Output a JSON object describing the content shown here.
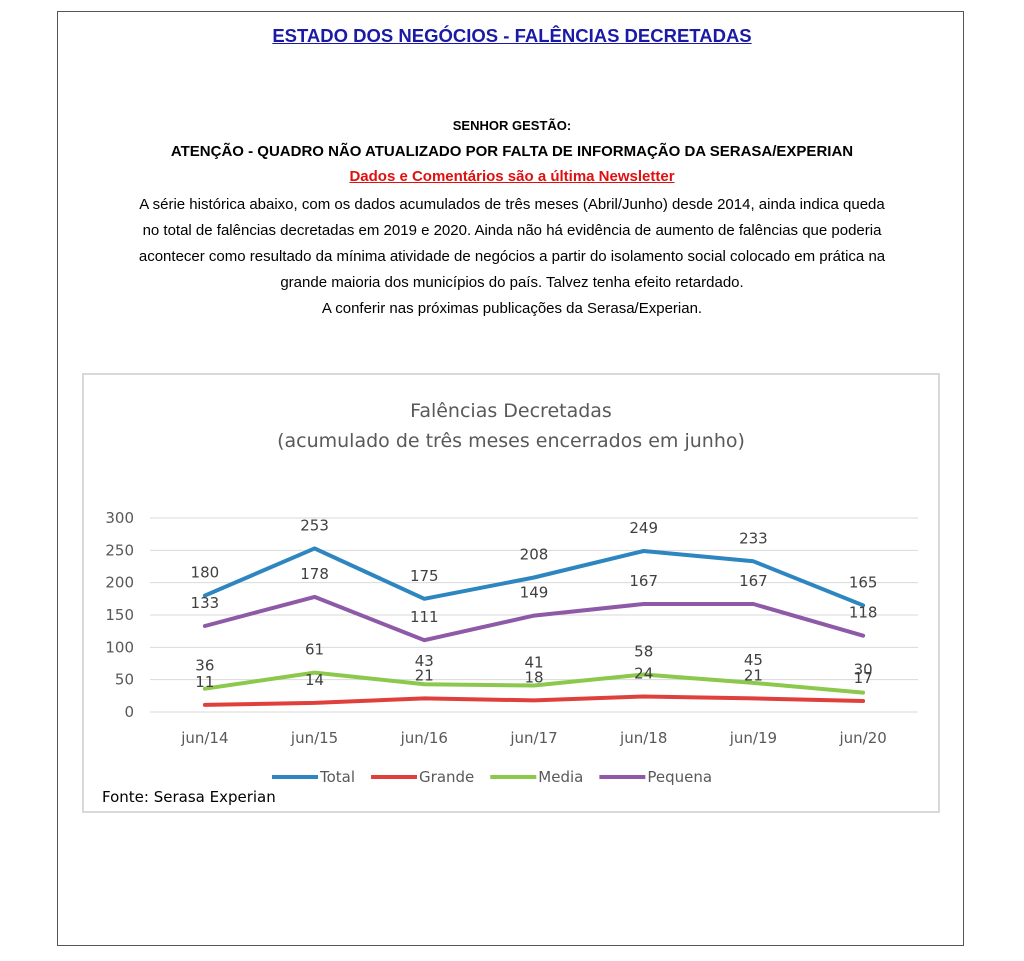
{
  "header": {
    "title": "ESTADO DOS NEGÓCIOS - FALÊNCIAS DECRETADAS",
    "salutation": "SENHOR GESTÃO:",
    "attention": "ATENÇÃO - QUADRO NÃO ATUALIZADO POR FALTA DE INFORMAÇÃO DA SERASA/EXPERIAN",
    "newsletter_link": "Dados e Comentários são a última Newsletter",
    "link_color": "#e01010",
    "title_color": "#1a1aa6"
  },
  "body": {
    "line1": "A série histórica abaixo, com os dados acumulados de três meses (Abril/Junho) desde 2014, ainda indica queda",
    "line2": "no total de falências decretadas em 2019 e 2020. Ainda não há evidência de aumento de falências que poderia",
    "line3": "acontecer como resultado da mínima atividade de negócios a partir do isolamento social colocado em prática na",
    "line4": "grande maioria dos municípios do país. Talvez tenha efeito retardado.",
    "line5": "A conferir nas próximas publicações da Serasa/Experian."
  },
  "chart_data": {
    "type": "line",
    "title": "Falências Decretadas",
    "subtitle": "(acumulado de três meses encerrados em junho)",
    "categories": [
      "jun/14",
      "jun/15",
      "jun/16",
      "jun/17",
      "jun/18",
      "jun/19",
      "jun/20"
    ],
    "y_ticks": [
      "0",
      "50",
      "100",
      "150",
      "200",
      "250",
      "300"
    ],
    "ylim": [
      0,
      300
    ],
    "grid": true,
    "legend_position": "bottom",
    "series": [
      {
        "name": "Total",
        "color": "#2e86c1",
        "values": [
          180,
          253,
          175,
          208,
          249,
          233,
          165
        ]
      },
      {
        "name": "Grande",
        "color": "#e0403c",
        "values": [
          11,
          14,
          21,
          18,
          24,
          21,
          17
        ]
      },
      {
        "name": "Media",
        "color": "#8cc84b",
        "values": [
          36,
          61,
          43,
          41,
          58,
          45,
          30
        ]
      },
      {
        "name": "Pequena",
        "color": "#8e5aa8",
        "values": [
          133,
          178,
          111,
          149,
          167,
          167,
          118
        ]
      }
    ],
    "source": "Fonte: Serasa Experian"
  }
}
